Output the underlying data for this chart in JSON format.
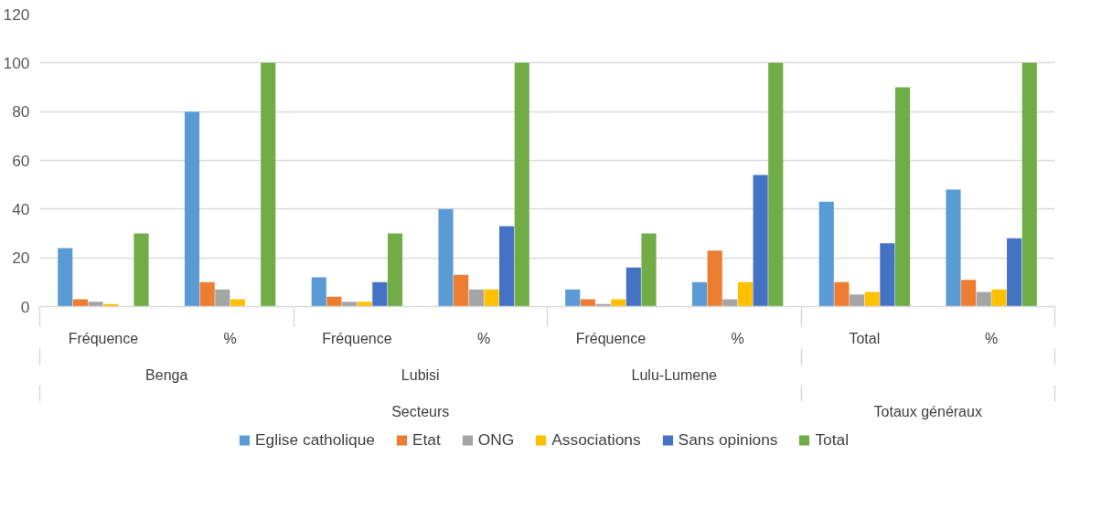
{
  "chart_data": {
    "type": "bar",
    "categories": [
      "Fréquence",
      "%",
      "Fréquence",
      "%",
      "Fréquence",
      "%",
      "Total",
      "%"
    ],
    "annotations": [
      "Benga",
      "Lubisi",
      "Lulu-Lumene",
      "Secteurs",
      "Totaux généraux"
    ],
    "series": [
      {
        "name": "Eglise catholique",
        "color": "#5b9bd5",
        "values": [
          24,
          80,
          12,
          40,
          7,
          10,
          43,
          48
        ]
      },
      {
        "name": "Etat",
        "color": "#ed7d31",
        "values": [
          3,
          10,
          4,
          13,
          3,
          23,
          10,
          11
        ]
      },
      {
        "name": "ONG",
        "color": "#a5a5a5",
        "values": [
          2,
          7,
          2,
          7,
          1,
          3,
          5,
          6
        ]
      },
      {
        "name": "Associations",
        "color": "#ffc000",
        "values": [
          1,
          3,
          2,
          7,
          3,
          10,
          6,
          7
        ]
      },
      {
        "name": "Sans opinions",
        "color": "#4472c4",
        "values": [
          0,
          0,
          10,
          33,
          16,
          54,
          26,
          28
        ]
      },
      {
        "name": "Total",
        "color": "#70ad47",
        "values": [
          30,
          100,
          30,
          100,
          30,
          100,
          90,
          100
        ]
      }
    ],
    "ylim": [
      0,
      120
    ],
    "yticks": [
      0,
      20,
      40,
      60,
      80,
      100,
      120
    ],
    "grid": "y",
    "legend": "bottom"
  }
}
